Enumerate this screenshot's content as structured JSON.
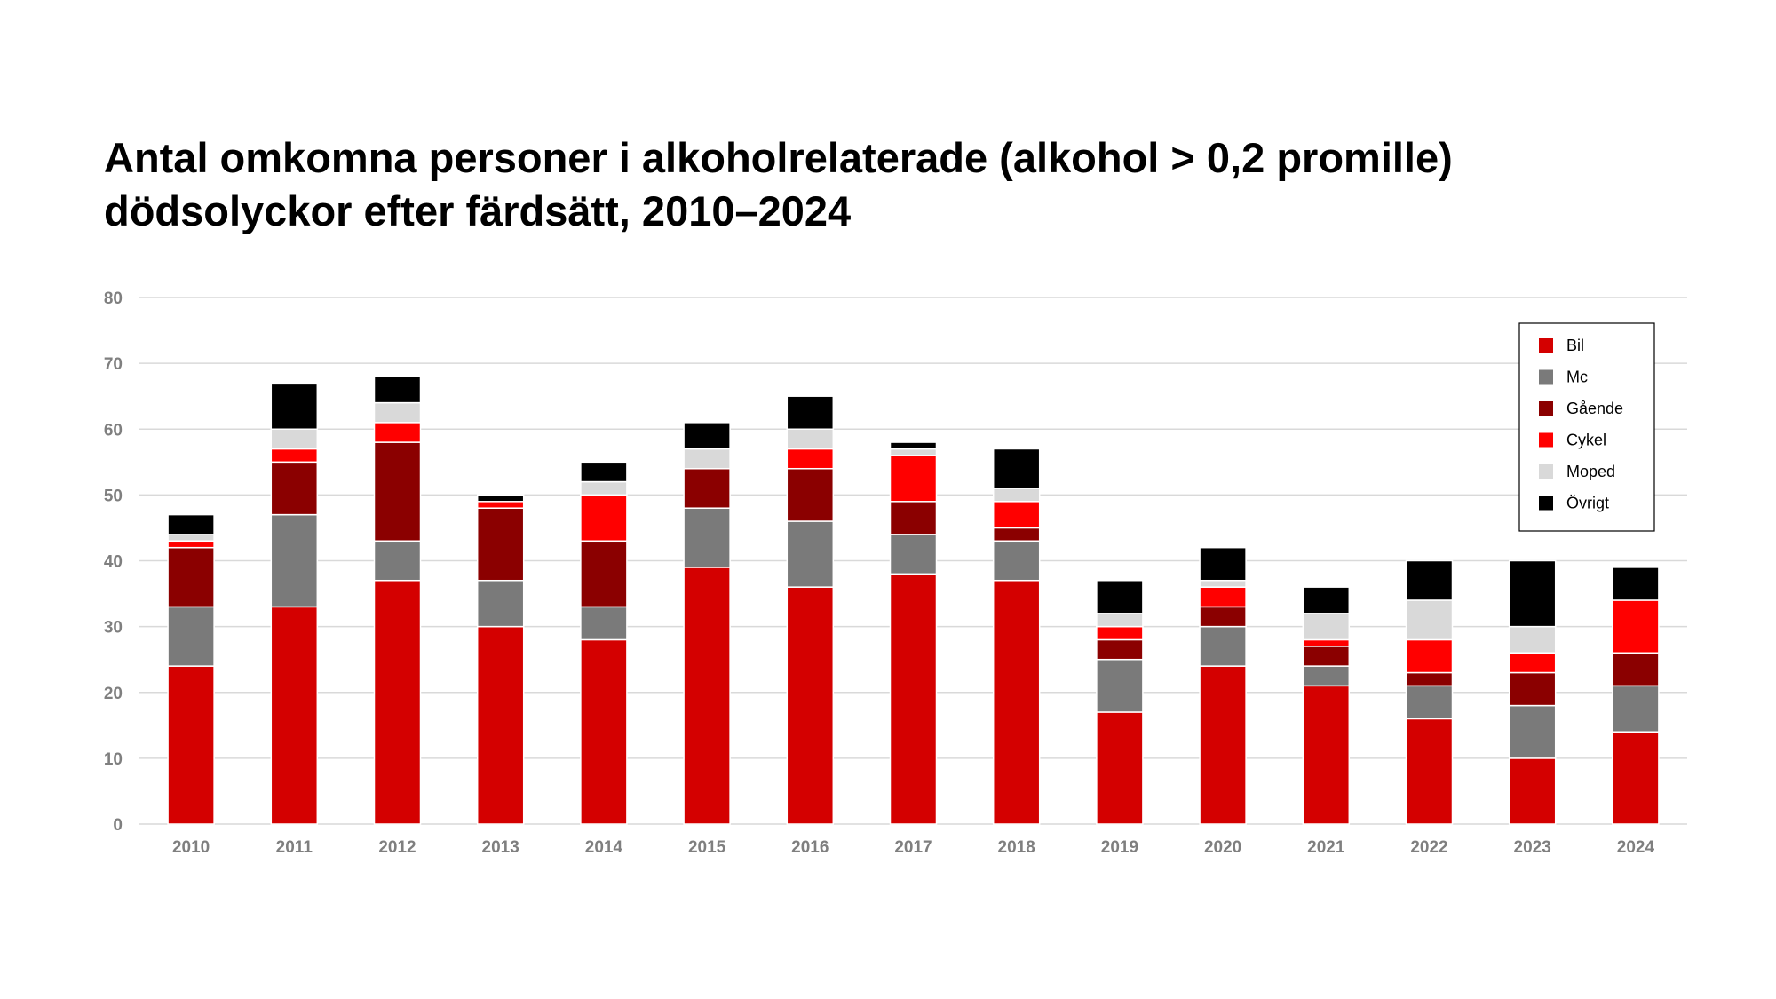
{
  "title_lines": [
    "Antal omkomna personer i alkoholrelaterade (alkohol > 0,2 promille)",
    "dödsolyckor efter färdsätt, 2010–2024"
  ],
  "chart_data": {
    "type": "bar",
    "stacked": true,
    "title": "Antal omkomna personer i alkoholrelaterade (alkohol > 0,2 promille) dödsolyckor efter färdsätt, 2010–2024",
    "xlabel": "",
    "ylabel": "",
    "ylim": [
      0,
      80
    ],
    "yticks": [
      0,
      10,
      20,
      30,
      40,
      50,
      60,
      70,
      80
    ],
    "grid": true,
    "legend_position": "top-right",
    "categories": [
      "2010",
      "2011",
      "2012",
      "2013",
      "2014",
      "2015",
      "2016",
      "2017",
      "2018",
      "2019",
      "2020",
      "2021",
      "2022",
      "2023",
      "2024"
    ],
    "series": [
      {
        "name": "Bil",
        "color": "#d40000",
        "values": [
          24,
          33,
          37,
          30,
          28,
          39,
          36,
          38,
          37,
          17,
          24,
          21,
          16,
          10,
          14
        ]
      },
      {
        "name": "Mc",
        "color": "#7a7a7a",
        "values": [
          9,
          14,
          6,
          7,
          5,
          9,
          10,
          6,
          6,
          8,
          6,
          3,
          5,
          8,
          7
        ]
      },
      {
        "name": "Gående",
        "color": "#8b0000",
        "values": [
          9,
          8,
          15,
          11,
          10,
          6,
          8,
          5,
          2,
          3,
          3,
          3,
          2,
          5,
          5
        ]
      },
      {
        "name": "Cykel",
        "color": "#ff0000",
        "values": [
          1,
          2,
          3,
          1,
          7,
          0,
          3,
          7,
          4,
          2,
          3,
          1,
          5,
          3,
          8
        ]
      },
      {
        "name": "Moped",
        "color": "#d9d9d9",
        "values": [
          1,
          3,
          3,
          0,
          2,
          3,
          3,
          1,
          2,
          2,
          1,
          4,
          6,
          4,
          0
        ]
      },
      {
        "name": "Övrigt",
        "color": "#000000",
        "values": [
          3,
          7,
          4,
          1,
          3,
          4,
          5,
          1,
          6,
          5,
          5,
          4,
          6,
          10,
          5
        ]
      }
    ]
  }
}
